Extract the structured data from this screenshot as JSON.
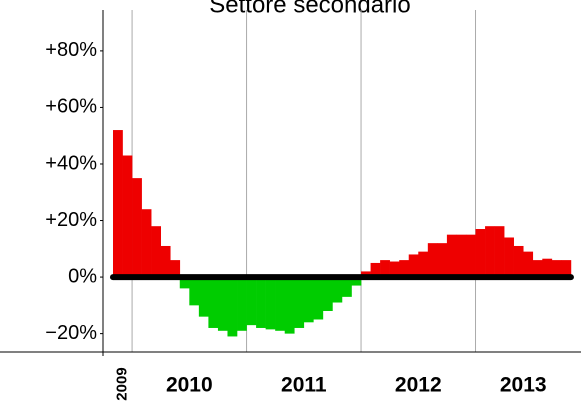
{
  "chart_data": {
    "type": "bar",
    "title": "Settore secondario",
    "groups": [
      {
        "label": "2009",
        "count": 2
      },
      {
        "label": "2010",
        "count": 12
      },
      {
        "label": "2011",
        "count": 12
      },
      {
        "label": "2012",
        "count": 12
      },
      {
        "label": "2013",
        "count": 10
      }
    ],
    "values": [
      52,
      43,
      35,
      24,
      18,
      11,
      6,
      -4,
      -10,
      -14,
      -18,
      -19,
      -21,
      -19,
      -17,
      -18,
      -18.5,
      -19,
      -20,
      -18,
      -16,
      -15,
      -12,
      -9,
      -7,
      -3,
      2,
      5,
      6,
      5.5,
      6,
      8,
      9,
      12,
      12,
      15,
      15,
      15,
      17,
      18,
      18,
      14,
      11,
      9,
      6,
      6.5,
      6,
      6
    ],
    "positive_color": "#ee0000",
    "negative_color": "#00cc00",
    "ylim": [
      -26.5,
      98
    ],
    "yticks": [
      {
        "value": -20,
        "label": "−20%"
      },
      {
        "value": 0,
        "label": "0%"
      },
      {
        "value": 20,
        "label": "+20%"
      },
      {
        "value": 40,
        "label": "+40%"
      },
      {
        "value": 60,
        "label": "+60%"
      },
      {
        "value": 80,
        "label": "+80%"
      }
    ],
    "zero_line": true,
    "grid": false
  }
}
